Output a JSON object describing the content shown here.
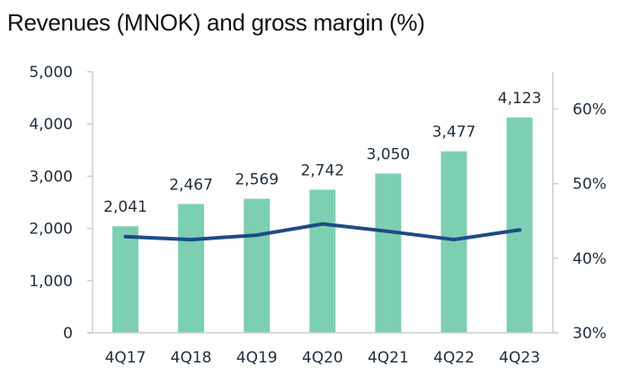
{
  "chart_data": {
    "type": "bar",
    "title": "Revenues (MNOK) and gross margin (%)",
    "categories": [
      "4Q17",
      "4Q18",
      "4Q19",
      "4Q20",
      "4Q21",
      "4Q22",
      "4Q23"
    ],
    "series": [
      {
        "name": "Revenues (MNOK)",
        "type": "bar",
        "axis": "left",
        "values": [
          2041,
          2467,
          2569,
          2742,
          3050,
          3477,
          4123
        ],
        "labels": [
          "2,041",
          "2,467",
          "2,569",
          "2,742",
          "3,050",
          "3,477",
          "4,123"
        ],
        "color": "#7dcfb2"
      },
      {
        "name": "Gross margin (%)",
        "type": "line",
        "axis": "right",
        "values": [
          42.9,
          42.5,
          43.1,
          44.6,
          43.6,
          42.5,
          43.8
        ],
        "color": "#1f4a87"
      }
    ],
    "y_left": {
      "range": [
        0,
        5000
      ],
      "ticks": [
        0,
        1000,
        2000,
        3000,
        4000,
        5000
      ],
      "tick_labels": [
        "0",
        "1,000",
        "2,000",
        "3,000",
        "4,000",
        "5,000"
      ]
    },
    "y_right": {
      "range": [
        30,
        65
      ],
      "ticks": [
        30,
        40,
        50,
        60
      ],
      "tick_labels": [
        "30%",
        "40%",
        "50%",
        "60%"
      ]
    },
    "grid": false,
    "axis_color": "#c5d1d6"
  }
}
